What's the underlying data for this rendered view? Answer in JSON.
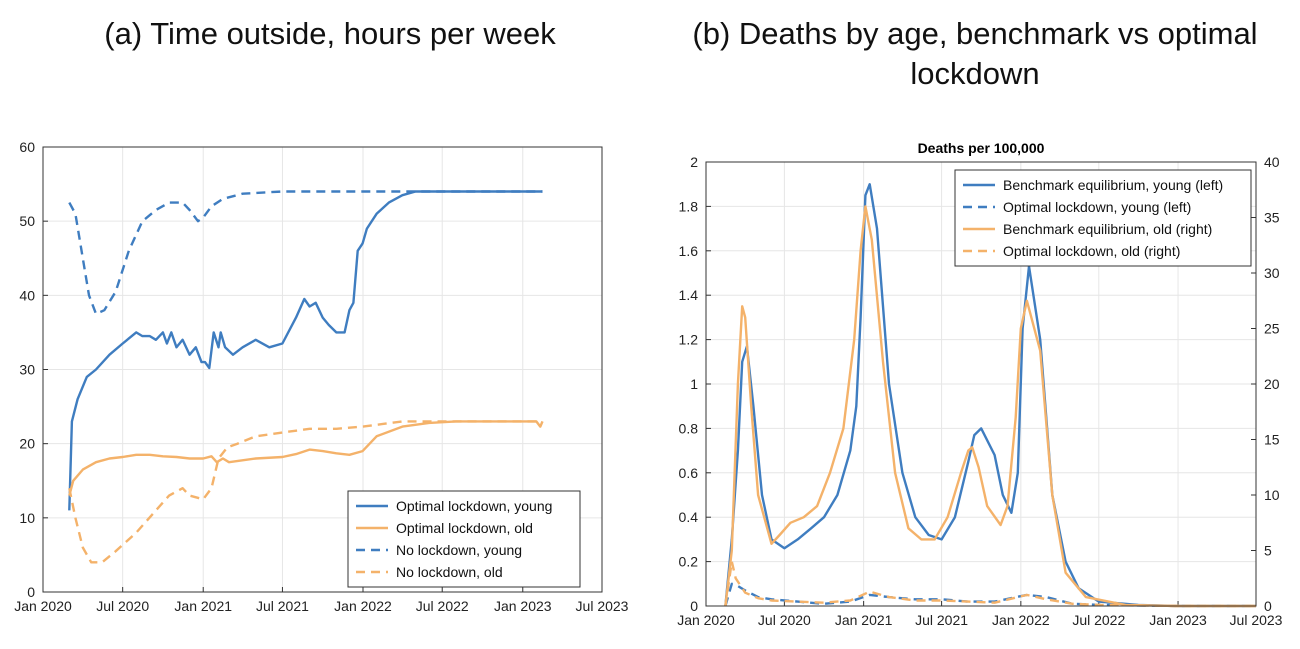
{
  "chart_data": [
    {
      "type": "line",
      "title": "(a) Time outside, hours per week",
      "xlabel": "",
      "ylabel": "",
      "ylim": [
        0,
        60
      ],
      "yticks": [
        "0",
        "10",
        "20",
        "30",
        "40",
        "50",
        "60"
      ],
      "xlim": [
        "2020-01-01",
        "2023-07-01"
      ],
      "xticks": [
        "Jan 2020",
        "Jul 2020",
        "Jan 2021",
        "Jul 2021",
        "Jan 2022",
        "Jul 2022",
        "Jan 2023",
        "Jul 2023"
      ],
      "grid": true,
      "legend_position": "bottom-right",
      "series": [
        {
          "name": "Optimal lockdown, young",
          "color": "#3f7dc0",
          "dash": "solid",
          "x": [
            "2020-03-01",
            "2020-03-07",
            "2020-03-20",
            "2020-04-10",
            "2020-05-01",
            "2020-06-01",
            "2020-07-01",
            "2020-08-01",
            "2020-08-15",
            "2020-09-01",
            "2020-09-15",
            "2020-10-01",
            "2020-10-10",
            "2020-10-20",
            "2020-11-01",
            "2020-11-15",
            "2020-12-01",
            "2020-12-15",
            "2020-12-28",
            "2021-01-05",
            "2021-01-15",
            "2021-01-25",
            "2021-02-05",
            "2021-02-10",
            "2021-02-20",
            "2021-03-10",
            "2021-04-01",
            "2021-05-01",
            "2021-06-01",
            "2021-07-01",
            "2021-08-01",
            "2021-08-20",
            "2021-09-01",
            "2021-09-15",
            "2021-10-01",
            "2021-10-15",
            "2021-11-01",
            "2021-11-20",
            "2021-12-01",
            "2021-12-10",
            "2021-12-20",
            "2021-12-31",
            "2022-01-10",
            "2022-02-01",
            "2022-03-01",
            "2022-04-01",
            "2022-05-01",
            "2022-06-01",
            "2022-07-01",
            "2022-09-01",
            "2022-11-01",
            "2023-01-01",
            "2023-02-15"
          ],
          "y": [
            11,
            23,
            26,
            29,
            30,
            32,
            33.5,
            35,
            34.5,
            34.5,
            34,
            35,
            33.5,
            35,
            33,
            34,
            32,
            33,
            31,
            31,
            30.2,
            35,
            33,
            35,
            33,
            32,
            33,
            34,
            33,
            33.5,
            37,
            39.5,
            38.5,
            39,
            37,
            36,
            35,
            35,
            38,
            39,
            46,
            47,
            49,
            51,
            52.5,
            53.5,
            54,
            54,
            54,
            54,
            54,
            54,
            54
          ]
        },
        {
          "name": "Optimal lockdown, old",
          "color": "#f4b26a",
          "dash": "solid",
          "x": [
            "2020-03-01",
            "2020-03-10",
            "2020-04-01",
            "2020-05-01",
            "2020-06-01",
            "2020-07-01",
            "2020-08-01",
            "2020-09-01",
            "2020-10-01",
            "2020-11-01",
            "2020-12-01",
            "2021-01-01",
            "2021-01-20",
            "2021-02-01",
            "2021-02-15",
            "2021-03-01",
            "2021-05-01",
            "2021-07-01",
            "2021-08-01",
            "2021-09-01",
            "2021-10-01",
            "2021-11-01",
            "2021-12-01",
            "2021-12-31",
            "2022-02-01",
            "2022-04-01",
            "2022-06-01",
            "2022-08-01",
            "2022-10-01",
            "2023-01-01",
            "2023-02-01",
            "2023-02-10",
            "2023-02-15"
          ],
          "y": [
            13,
            15,
            16.5,
            17.5,
            18,
            18.2,
            18.5,
            18.5,
            18.3,
            18.2,
            18,
            18,
            18.3,
            17.5,
            18,
            17.5,
            18,
            18.2,
            18.6,
            19.2,
            19,
            18.7,
            18.5,
            19,
            21,
            22.3,
            22.8,
            23,
            23,
            23,
            23,
            22.3,
            23
          ]
        },
        {
          "name": "No lockdown, young",
          "color": "#3f7dc0",
          "dash": "dashed",
          "x": [
            "2020-03-01",
            "2020-03-15",
            "2020-04-01",
            "2020-04-15",
            "2020-05-01",
            "2020-05-20",
            "2020-06-15",
            "2020-07-15",
            "2020-08-15",
            "2020-09-15",
            "2020-10-15",
            "2020-11-15",
            "2020-12-01",
            "2020-12-20",
            "2021-01-01",
            "2021-01-20",
            "2021-02-15",
            "2021-04-01",
            "2021-07-01",
            "2022-01-01",
            "2022-07-01",
            "2023-02-15"
          ],
          "y": [
            52.5,
            51,
            45,
            40,
            37.5,
            38,
            40.5,
            46,
            50,
            51.5,
            52.5,
            52.5,
            51.5,
            50,
            50.5,
            52,
            53,
            53.7,
            54,
            54,
            54,
            54
          ]
        },
        {
          "name": "No lockdown, old",
          "color": "#f4b26a",
          "dash": "dashed",
          "x": [
            "2020-03-01",
            "2020-03-15",
            "2020-04-01",
            "2020-04-20",
            "2020-05-15",
            "2020-06-15",
            "2020-08-01",
            "2020-09-15",
            "2020-10-15",
            "2020-11-15",
            "2020-12-01",
            "2021-01-01",
            "2021-01-20",
            "2021-02-05",
            "2021-02-25",
            "2021-03-20",
            "2021-05-01",
            "2021-07-01",
            "2021-09-01",
            "2021-11-01",
            "2022-01-01",
            "2022-04-01",
            "2022-07-01",
            "2023-01-01",
            "2023-02-15"
          ],
          "y": [
            14,
            10,
            6,
            4,
            4,
            5.5,
            8,
            11,
            13,
            14,
            13,
            12.5,
            14,
            18,
            19.5,
            20,
            21,
            21.5,
            22,
            22,
            22.3,
            23,
            23,
            23,
            23
          ]
        }
      ]
    },
    {
      "type": "line",
      "title": "(b) Deaths by age, benchmark vs optimal lockdown",
      "subtitle": "Deaths per 100,000",
      "xlabel": "",
      "ylabel": "",
      "ylim": [
        0,
        2
      ],
      "y2lim": [
        0,
        40
      ],
      "yticks": [
        "0",
        "0.2",
        "0.4",
        "0.6",
        "0.8",
        "1",
        "1.2",
        "1.4",
        "1.6",
        "1.8",
        "2"
      ],
      "y2ticks": [
        "0",
        "5",
        "10",
        "15",
        "20",
        "25",
        "30",
        "35",
        "40"
      ],
      "xlim": [
        "2020-01-01",
        "2023-07-01"
      ],
      "xticks": [
        "Jan 2020",
        "Jul 2020",
        "Jan 2021",
        "Jul 2021",
        "Jan 2022",
        "Jul 2022",
        "Jan 2023",
        "Jul 2023"
      ],
      "grid": true,
      "legend_position": "top-right",
      "series": [
        {
          "name": "Benchmark equilibrium, young (left)",
          "color": "#3f7dc0",
          "dash": "solid",
          "axis": "left",
          "x": [
            "2020-02-15",
            "2020-03-01",
            "2020-03-15",
            "2020-03-25",
            "2020-04-05",
            "2020-04-20",
            "2020-05-10",
            "2020-06-01",
            "2020-07-01",
            "2020-08-01",
            "2020-09-01",
            "2020-10-01",
            "2020-11-01",
            "2020-12-01",
            "2020-12-15",
            "2020-12-25",
            "2021-01-05",
            "2021-01-15",
            "2021-02-01",
            "2021-03-01",
            "2021-04-01",
            "2021-05-01",
            "2021-06-01",
            "2021-07-01",
            "2021-08-01",
            "2021-09-01",
            "2021-09-15",
            "2021-10-01",
            "2021-11-01",
            "2021-11-20",
            "2021-12-10",
            "2021-12-25",
            "2022-01-05",
            "2022-01-20",
            "2022-02-15",
            "2022-03-15",
            "2022-04-15",
            "2022-05-15",
            "2022-07-01",
            "2022-10-01",
            "2023-01-01",
            "2023-07-01"
          ],
          "y": [
            0,
            0.3,
            0.7,
            1.1,
            1.17,
            0.9,
            0.5,
            0.3,
            0.26,
            0.3,
            0.35,
            0.4,
            0.5,
            0.7,
            0.9,
            1.3,
            1.85,
            1.9,
            1.7,
            1.0,
            0.6,
            0.4,
            0.32,
            0.3,
            0.4,
            0.65,
            0.77,
            0.8,
            0.68,
            0.5,
            0.42,
            0.6,
            1.25,
            1.53,
            1.2,
            0.5,
            0.2,
            0.08,
            0.02,
            0.005,
            0.0,
            0.0
          ]
        },
        {
          "name": "Optimal lockdown, young (left)",
          "color": "#3f7dc0",
          "dash": "dashed",
          "axis": "left",
          "x": [
            "2020-02-15",
            "2020-03-01",
            "2020-03-15",
            "2020-04-01",
            "2020-05-01",
            "2020-06-01",
            "2020-08-01",
            "2020-10-01",
            "2020-12-01",
            "2021-01-15",
            "2021-03-01",
            "2021-05-01",
            "2021-07-01",
            "2021-09-01",
            "2021-11-01",
            "2022-01-15",
            "2022-03-01",
            "2022-05-01",
            "2022-07-01",
            "2023-01-01",
            "2023-07-01"
          ],
          "y": [
            0,
            0.1,
            0.09,
            0.07,
            0.04,
            0.03,
            0.02,
            0.01,
            0.02,
            0.05,
            0.04,
            0.03,
            0.03,
            0.02,
            0.02,
            0.05,
            0.04,
            0.01,
            0.005,
            0,
            0
          ]
        },
        {
          "name": "Benchmark equilibrium, old (right)",
          "color": "#f4b26a",
          "dash": "solid",
          "axis": "right",
          "x": [
            "2020-02-15",
            "2020-03-01",
            "2020-03-15",
            "2020-03-25",
            "2020-04-01",
            "2020-04-15",
            "2020-05-01",
            "2020-06-01",
            "2020-06-20",
            "2020-07-15",
            "2020-08-15",
            "2020-09-15",
            "2020-10-15",
            "2020-11-15",
            "2020-12-10",
            "2020-12-25",
            "2021-01-05",
            "2021-01-20",
            "2021-02-15",
            "2021-03-15",
            "2021-04-15",
            "2021-05-15",
            "2021-06-15",
            "2021-07-15",
            "2021-08-15",
            "2021-09-01",
            "2021-09-10",
            "2021-09-25",
            "2021-10-15",
            "2021-11-15",
            "2021-12-01",
            "2021-12-20",
            "2022-01-01",
            "2022-01-15",
            "2022-02-15",
            "2022-03-15",
            "2022-04-15",
            "2022-06-01",
            "2022-09-01",
            "2023-01-01",
            "2023-07-01"
          ],
          "y": [
            0,
            5,
            20,
            27,
            26,
            18,
            10,
            5.6,
            6.4,
            7.5,
            8,
            9,
            12,
            16,
            24,
            32,
            36,
            33,
            22,
            12,
            7,
            6,
            6,
            8,
            12,
            14,
            14.3,
            12.5,
            9,
            7.3,
            9,
            17,
            25,
            27.5,
            23,
            10,
            3,
            0.8,
            0.1,
            0,
            0
          ]
        },
        {
          "name": "Optimal lockdown, old (right)",
          "color": "#f4b26a",
          "dash": "dashed",
          "axis": "right",
          "x": [
            "2020-02-15",
            "2020-03-01",
            "2020-03-10",
            "2020-04-01",
            "2020-05-01",
            "2020-06-01",
            "2020-08-01",
            "2020-10-01",
            "2020-12-01",
            "2021-01-15",
            "2021-03-01",
            "2021-05-01",
            "2021-07-01",
            "2021-09-01",
            "2021-11-01",
            "2022-01-15",
            "2022-03-01",
            "2022-05-01",
            "2022-07-01",
            "2023-01-01",
            "2023-07-01"
          ],
          "y": [
            0,
            4,
            2.5,
            1.2,
            0.7,
            0.5,
            0.4,
            0.3,
            0.5,
            1.3,
            0.8,
            0.5,
            0.5,
            0.4,
            0.3,
            1.0,
            0.6,
            0.2,
            0.1,
            0,
            0
          ]
        }
      ]
    }
  ]
}
